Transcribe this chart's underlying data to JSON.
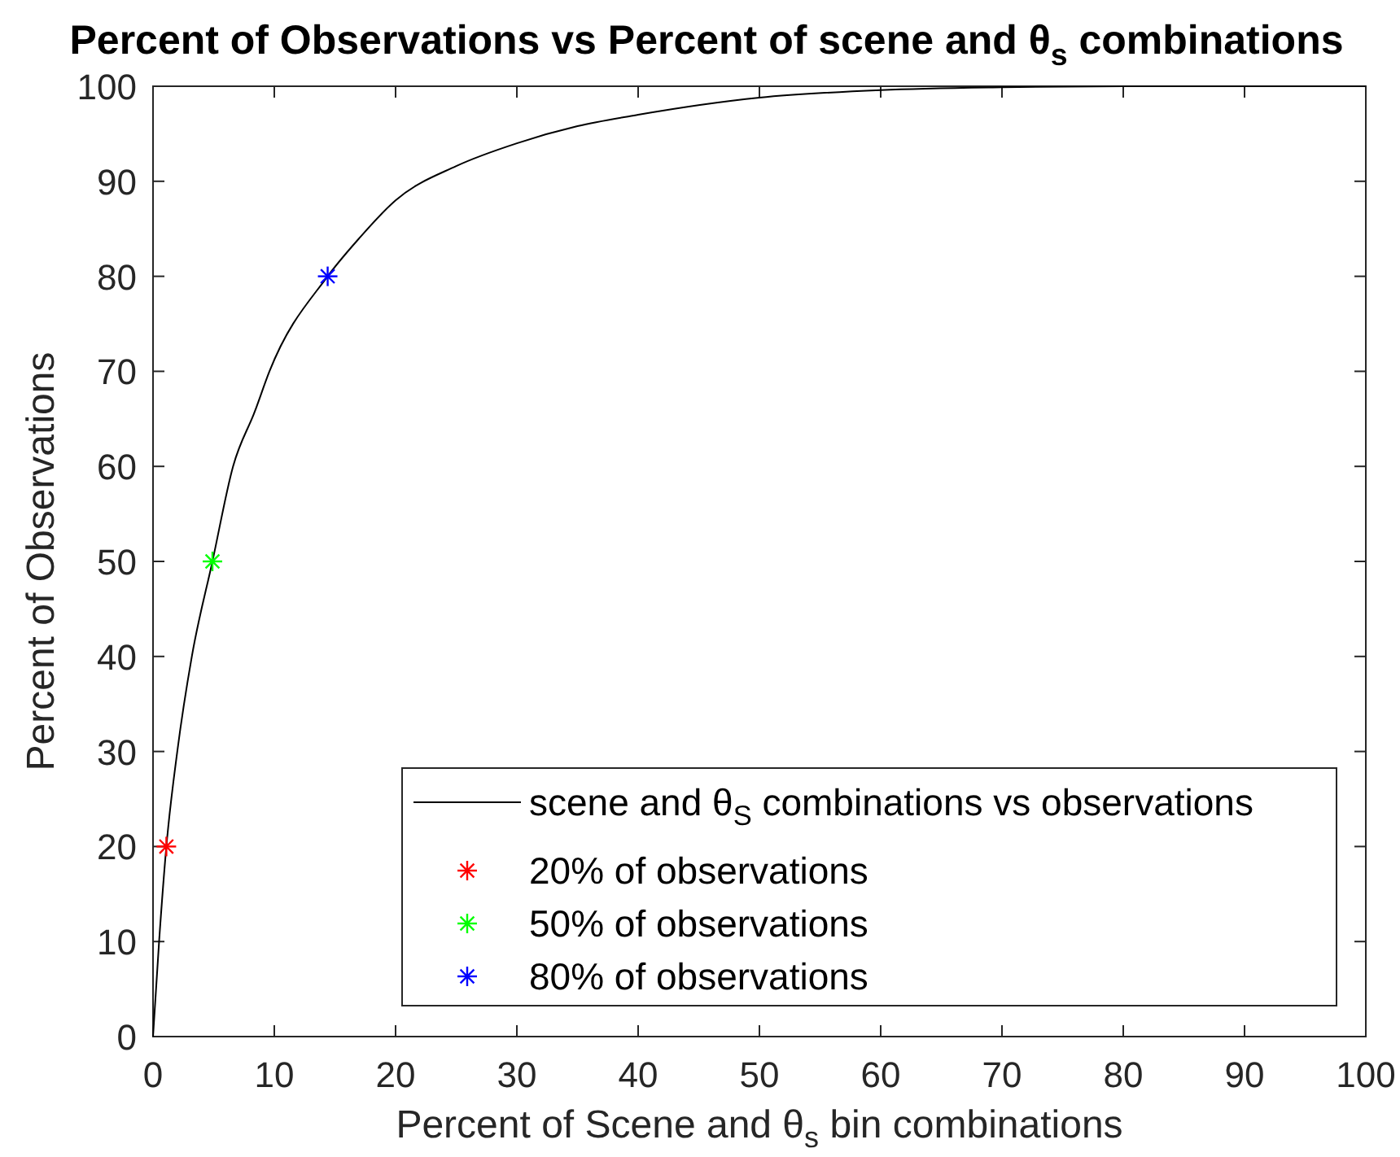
{
  "chart_data": {
    "type": "line",
    "title": "Percent of Observations vs Percent of scene and θ$_{s}$ combinations",
    "xlabel": "Percent of Scene and θ$_{s}$ bin combinations",
    "ylabel": "Percent of Observations",
    "xlim": [
      0,
      100
    ],
    "ylim": [
      0,
      100
    ],
    "xticks": [
      0,
      10,
      20,
      30,
      40,
      50,
      60,
      70,
      80,
      90,
      100
    ],
    "yticks": [
      0,
      10,
      20,
      30,
      40,
      50,
      60,
      70,
      80,
      90,
      100
    ],
    "grid": false,
    "legend": "bottom right",
    "series": [
      {
        "name": "scene and θ$_{S}$ combinations vs observations",
        "color": "#000000",
        "marker": "none",
        "line_style": "solid",
        "x": [
          0,
          0.5,
          1.1,
          2.0,
          3.2,
          4.9,
          6.6,
          8.4,
          9.6,
          14.4,
          17,
          20,
          25,
          30,
          35,
          40,
          50,
          60,
          70,
          80,
          90,
          100
        ],
        "values": [
          0,
          10,
          20,
          30,
          40,
          50,
          60,
          65.8,
          70,
          80,
          84,
          88,
          91.6,
          94,
          95.8,
          97,
          98.8,
          99.6,
          99.9,
          100,
          100,
          100
        ]
      },
      {
        "name": "20% of observations",
        "type": "scatter",
        "color": "#ff0000",
        "marker": "cross",
        "x": [
          1.1
        ],
        "values": [
          20
        ]
      },
      {
        "name": "50% of observations",
        "type": "scatter",
        "color": "#00ff00",
        "marker": "cross",
        "x": [
          4.9
        ],
        "values": [
          50
        ]
      },
      {
        "name": "80% of observations",
        "type": "scatter",
        "color": "#0000ff",
        "marker": "cross",
        "x": [
          14.4
        ],
        "values": [
          80
        ]
      }
    ]
  }
}
